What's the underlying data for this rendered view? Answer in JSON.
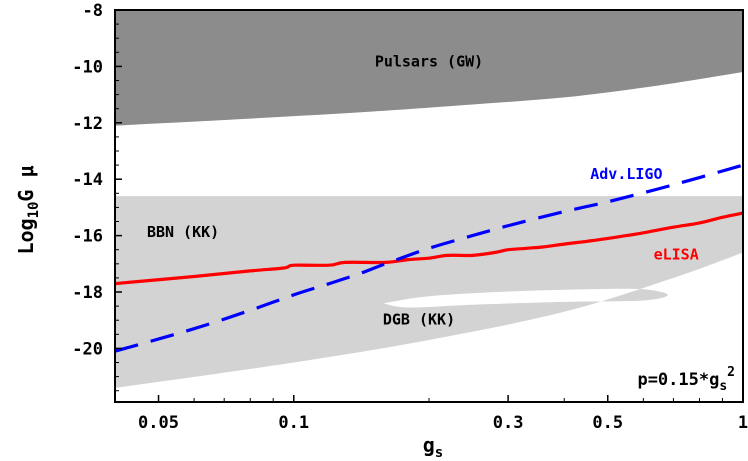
{
  "chart_data": {
    "type": "line",
    "title": "",
    "xlabel": "g",
    "xlabel_sub": "s",
    "ylabel_prefix": "Log",
    "ylabel_sub": "10",
    "ylabel_suffix": "G μ",
    "xscale": "log",
    "xlim": [
      0.04,
      1.0
    ],
    "ylim": [
      -21.9,
      -8.0
    ],
    "xticks": [
      {
        "value": 0.05,
        "label": "0.05"
      },
      {
        "value": 0.1,
        "label": "0.1"
      },
      {
        "value": 0.3,
        "label": "0.3"
      },
      {
        "value": 0.5,
        "label": "0.5"
      },
      {
        "value": 1.0,
        "label": "1"
      }
    ],
    "yticks": [
      {
        "value": -8,
        "label": "-8"
      },
      {
        "value": -10,
        "label": "-10"
      },
      {
        "value": -12,
        "label": "-12"
      },
      {
        "value": -14,
        "label": "-14"
      },
      {
        "value": -16,
        "label": "-16"
      },
      {
        "value": -18,
        "label": "-18"
      },
      {
        "value": -20,
        "label": "-20"
      }
    ],
    "grid": false,
    "regions": [
      {
        "name": "Pulsars (GW)",
        "color": "#8c8c8c",
        "boundary": {
          "x": [
            0.04,
            0.08,
            0.15,
            0.25,
            0.4,
            0.6,
            0.8,
            1.0
          ],
          "y": [
            -12.1,
            -11.85,
            -11.6,
            -11.35,
            -11.1,
            -10.75,
            -10.45,
            -10.2
          ]
        },
        "extends_to": "top"
      },
      {
        "name": "BBN (KK)",
        "color": "#d3d3d3",
        "ymin": -21.4,
        "ymax": -14.6,
        "lower_boundary": {
          "x": [
            0.04,
            0.1,
            0.2,
            0.4,
            0.7,
            1.0
          ],
          "y": [
            -21.4,
            -20.5,
            -19.7,
            -18.7,
            -17.5,
            -16.6
          ]
        },
        "hole_label": "DGB (KK)",
        "hole": {
          "x": [
            0.158,
            0.2,
            0.3,
            0.45,
            0.6,
            0.68,
            0.6,
            0.4,
            0.25,
            0.18,
            0.158
          ],
          "y": [
            -18.4,
            -18.15,
            -17.98,
            -17.9,
            -17.9,
            -18.1,
            -18.3,
            -18.35,
            -18.45,
            -18.55,
            -18.4
          ]
        }
      }
    ],
    "series": [
      {
        "name": "eLISA",
        "color": "#ff0000",
        "style": "solid",
        "x": [
          0.04,
          0.06,
          0.08,
          0.095,
          0.1,
          0.12,
          0.13,
          0.16,
          0.18,
          0.2,
          0.22,
          0.25,
          0.28,
          0.3,
          0.33,
          0.36,
          0.4,
          0.45,
          0.5,
          0.55,
          0.6,
          0.7,
          0.8,
          0.9,
          1.0
        ],
        "y": [
          -17.7,
          -17.45,
          -17.25,
          -17.15,
          -17.05,
          -17.05,
          -16.95,
          -16.95,
          -16.85,
          -16.8,
          -16.7,
          -16.7,
          -16.6,
          -16.5,
          -16.45,
          -16.4,
          -16.3,
          -16.2,
          -16.1,
          -16.0,
          -15.9,
          -15.7,
          -15.55,
          -15.35,
          -15.2
        ]
      },
      {
        "name": "Adv.LIGO",
        "color": "#0000ff",
        "style": "dashed",
        "x": [
          0.04,
          0.06,
          0.08,
          0.1,
          0.12,
          0.14,
          0.16,
          0.2,
          0.25,
          0.3,
          0.4,
          0.5,
          0.7,
          1.0
        ],
        "y": [
          -20.1,
          -19.3,
          -18.65,
          -18.1,
          -17.7,
          -17.35,
          -17.0,
          -16.45,
          -16.0,
          -15.65,
          -15.15,
          -14.8,
          -14.2,
          -13.5
        ]
      }
    ],
    "annotations": [
      {
        "text": "Pulsars (GW)",
        "x": 0.2,
        "y": -10.0
      },
      {
        "text": "BBN (KK)",
        "x": 0.0567,
        "y": -16.05
      },
      {
        "text": "DGB (KK)",
        "x": 0.19,
        "y": -19.15
      },
      {
        "text": "eLISA",
        "x": 0.71,
        "y": -16.85
      },
      {
        "text": "Adv.LIGO",
        "x": 0.55,
        "y": -14.0
      }
    ],
    "note": {
      "text": "p=0.15*g",
      "sub": "s",
      "sup": "2"
    }
  }
}
